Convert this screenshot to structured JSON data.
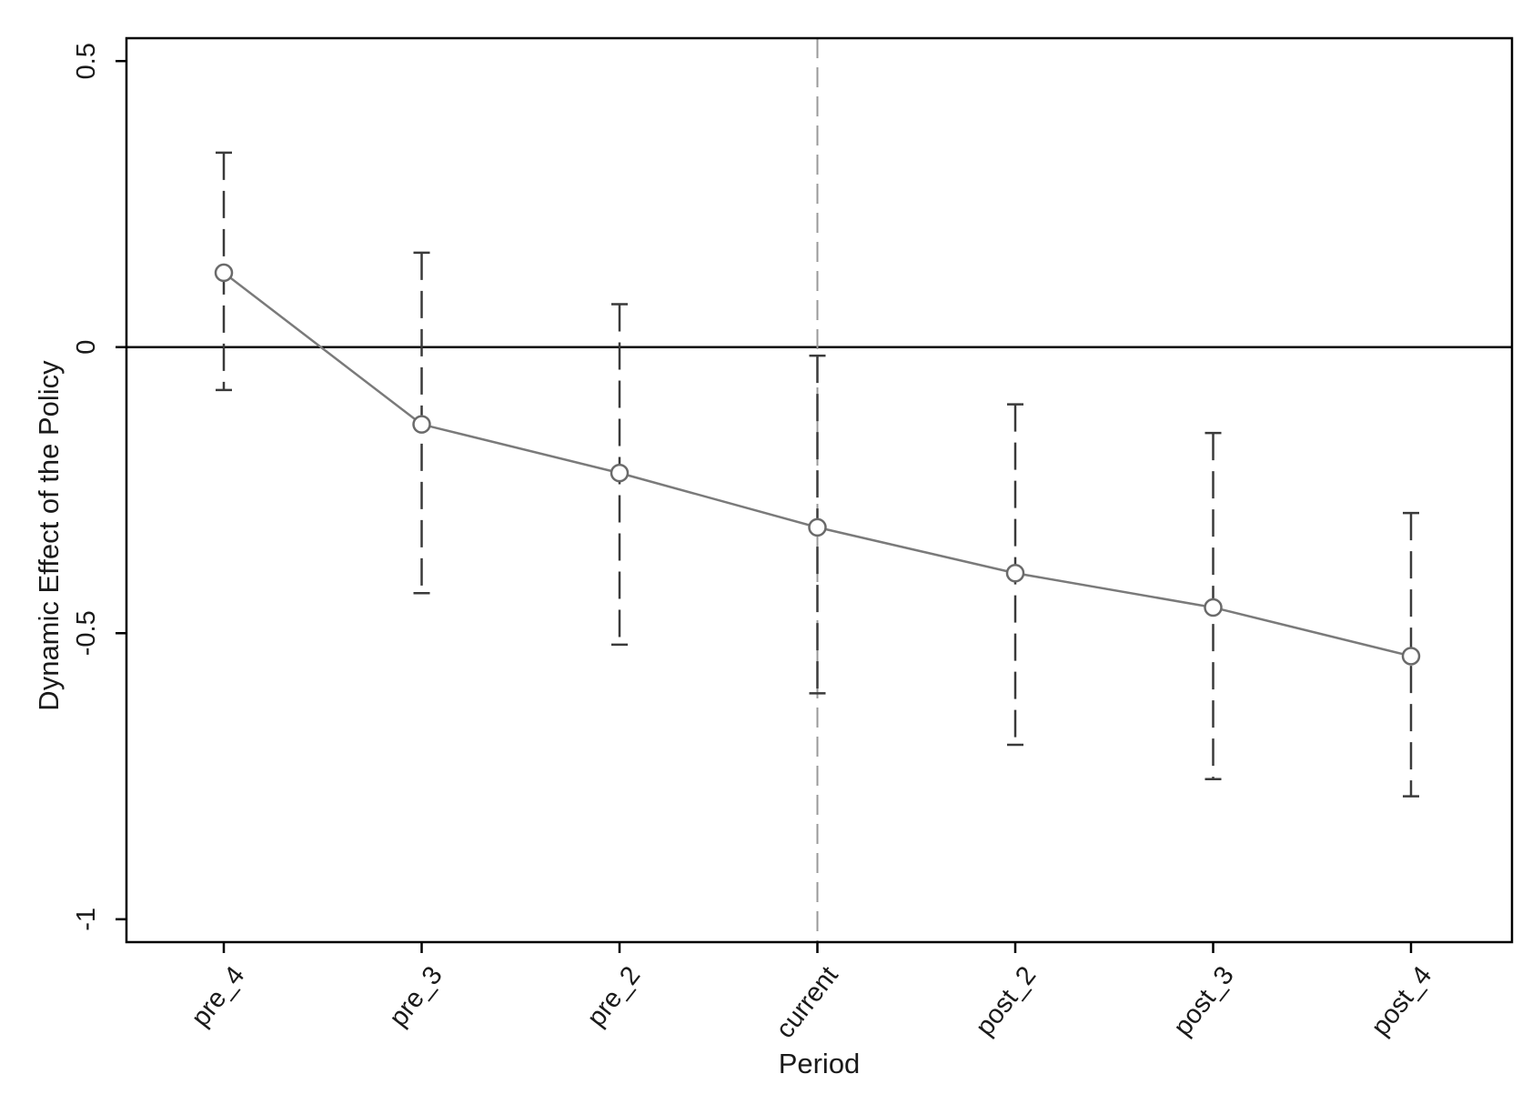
{
  "chart_data": {
    "type": "line",
    "xlabel": "Period",
    "ylabel": "Dynamic Effect of the Policy",
    "categories": [
      "pre_4",
      "pre_3",
      "pre_2",
      "current",
      "post_2",
      "post_3",
      "post_4"
    ],
    "series": [
      {
        "values": [
          0.13,
          -0.135,
          -0.22,
          -0.315,
          -0.395,
          -0.455,
          -0.54
        ],
        "ci_upper": [
          0.34,
          0.165,
          0.075,
          -0.015,
          -0.1,
          -0.15,
          -0.29
        ],
        "ci_lower": [
          -0.075,
          -0.43,
          -0.52,
          -0.605,
          -0.695,
          -0.755,
          -0.785
        ],
        "marker": "hollow-circle",
        "line_color": "#7a7a7a",
        "error_bar_style": "dashed"
      }
    ],
    "yticks": [
      0.5,
      0,
      -0.5,
      -1
    ],
    "yticklabels": [
      "0.5",
      "0",
      "-0.5",
      "-1"
    ],
    "ylim": [
      -1.04,
      0.54
    ],
    "reference_lines": [
      {
        "axis": "y",
        "value": 0,
        "style": "solid",
        "color": "#000000"
      },
      {
        "axis": "x",
        "category": "current",
        "style": "dashed",
        "color": "#9a9a9a"
      }
    ],
    "grid": false,
    "legend": "none"
  }
}
